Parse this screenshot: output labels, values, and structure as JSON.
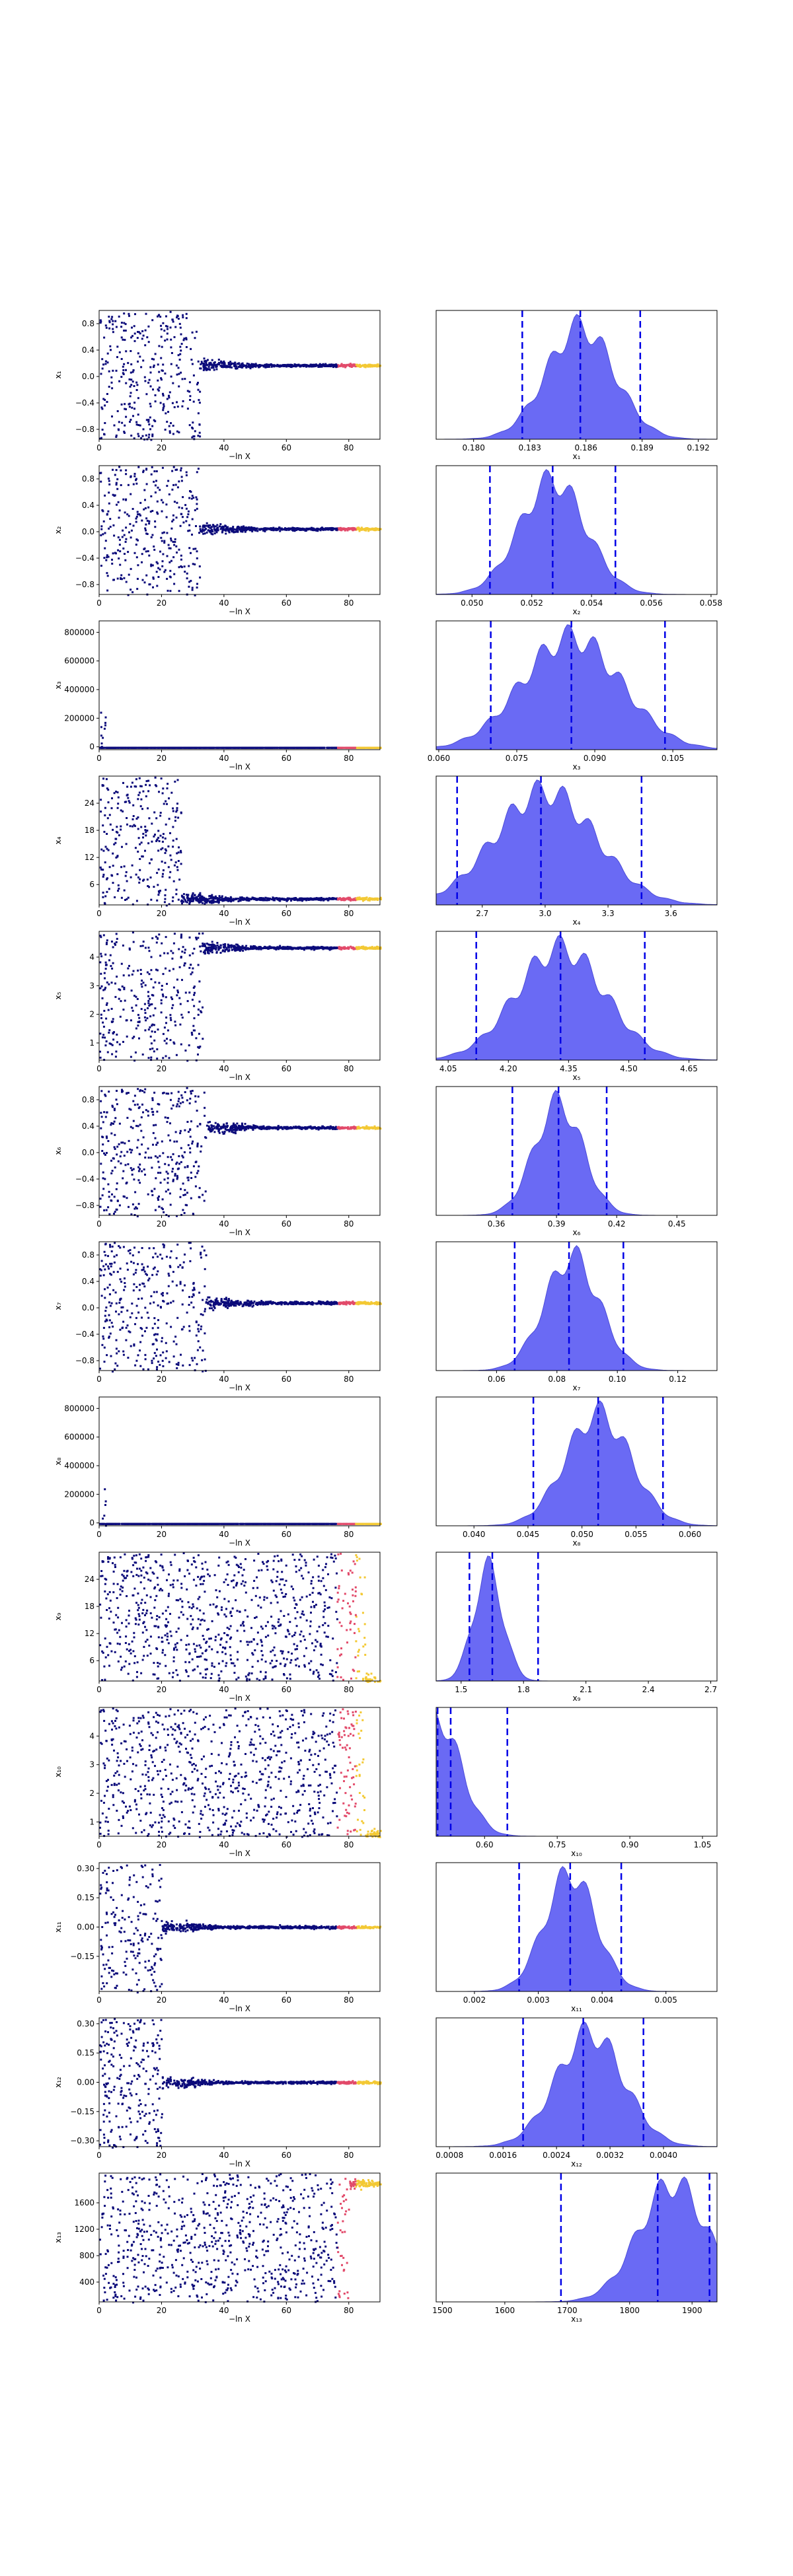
{
  "chart_data": [
    {
      "id": "x1",
      "type": "scatter",
      "xlabel": "−ln X",
      "ylabel": "x₁",
      "xlim": [
        0,
        90
      ],
      "ylim": [
        -0.95,
        1.0
      ],
      "xticks": [
        0,
        20,
        40,
        60,
        80
      ],
      "yticks": [
        -0.8,
        -0.4,
        0.0,
        0.4,
        0.8
      ],
      "yticklabels": [
        "−0.8",
        "−0.4",
        "0.0",
        "0.4",
        "0.8"
      ],
      "converged": 0.18,
      "spread": 0.95,
      "conv_x": 32,
      "hist": {
        "xlabel": "x₁",
        "xlim": [
          0.178,
          0.193
        ],
        "xticks": [
          0.18,
          0.183,
          0.186,
          0.189,
          0.192
        ],
        "xticklabels": [
          "0.180",
          "0.183",
          "0.186",
          "0.189",
          "0.192"
        ],
        "quantiles": [
          0.1826,
          0.1857,
          0.1889
        ],
        "mean": 0.1857,
        "sd": 0.0018
      }
    },
    {
      "id": "x2",
      "type": "scatter",
      "xlabel": "−ln X",
      "ylabel": "x₂",
      "xlim": [
        0,
        90
      ],
      "ylim": [
        -0.95,
        1.0
      ],
      "xticks": [
        0,
        20,
        40,
        60,
        80
      ],
      "yticks": [
        -0.8,
        -0.4,
        0.0,
        0.4,
        0.8
      ],
      "yticklabels": [
        "−0.8",
        "−0.4",
        "0.0",
        "0.4",
        "0.8"
      ],
      "converged": 0.053,
      "spread": 0.95,
      "conv_x": 32,
      "hist": {
        "xlabel": "x₂",
        "xlim": [
          0.0488,
          0.0582
        ],
        "xticks": [
          0.05,
          0.052,
          0.054,
          0.056,
          0.058
        ],
        "xticklabels": [
          "0.050",
          "0.052",
          "0.054",
          "0.056",
          "0.058"
        ],
        "quantiles": [
          0.0506,
          0.0527,
          0.0548
        ],
        "mean": 0.0527,
        "sd": 0.0011
      }
    },
    {
      "id": "x3",
      "type": "scatter",
      "xlabel": "−ln X",
      "ylabel": "x₃",
      "xlim": [
        0,
        90
      ],
      "ylim": [
        -20000,
        880000
      ],
      "xticks": [
        0,
        20,
        40,
        60,
        80
      ],
      "yticks": [
        0,
        200000,
        400000,
        600000,
        800000
      ],
      "yticklabels": [
        "0",
        "200000",
        "400000",
        "600000",
        "800000"
      ],
      "converged": 0.085,
      "spread": 0,
      "conv_x": 2,
      "hist": {
        "xlabel": "x₃",
        "xlim": [
          0.0595,
          0.1135
        ],
        "xticks": [
          0.06,
          0.075,
          0.09,
          0.105
        ],
        "xticklabels": [
          "0.060",
          "0.075",
          "0.090",
          "0.105"
        ],
        "quantiles": [
          0.07,
          0.0855,
          0.1035
        ],
        "mean": 0.0855,
        "sd": 0.0095
      }
    },
    {
      "id": "x4",
      "type": "scatter",
      "xlabel": "−ln X",
      "ylabel": "x₄",
      "xlim": [
        0,
        90
      ],
      "ylim": [
        1.5,
        30
      ],
      "xticks": [
        0,
        20,
        40,
        60,
        80
      ],
      "yticks": [
        6,
        12,
        18,
        24
      ],
      "yticklabels": [
        "6",
        "12",
        "18",
        "24"
      ],
      "converged": 3.0,
      "spread": 14,
      "conv_x": 26,
      "hist": {
        "xlabel": "x₄",
        "xlim": [
          2.48,
          3.82
        ],
        "xticks": [
          2.7,
          3.0,
          3.3,
          3.6
        ],
        "xticklabels": [
          "2.7",
          "3.0",
          "3.3",
          "3.6"
        ],
        "quantiles": [
          2.58,
          2.98,
          3.46
        ],
        "mean": 3.0,
        "sd": 0.24
      }
    },
    {
      "id": "x5",
      "type": "scatter",
      "xlabel": "−ln X",
      "ylabel": "x₅",
      "xlim": [
        0,
        90
      ],
      "ylim": [
        0.4,
        4.9
      ],
      "xticks": [
        0,
        20,
        40,
        60,
        80
      ],
      "yticks": [
        1,
        2,
        3,
        4
      ],
      "yticklabels": [
        "1",
        "2",
        "3",
        "4"
      ],
      "converged": 4.35,
      "spread": 2.0,
      "conv_x": 33,
      "hist": {
        "xlabel": "x₅",
        "xlim": [
          4.02,
          4.72
        ],
        "xticks": [
          4.05,
          4.2,
          4.35,
          4.5,
          4.65
        ],
        "xticklabels": [
          "4.05",
          "4.20",
          "4.35",
          "4.50",
          "4.65"
        ],
        "quantiles": [
          4.12,
          4.33,
          4.54
        ],
        "mean": 4.33,
        "sd": 0.11
      }
    },
    {
      "id": "x6",
      "type": "scatter",
      "xlabel": "−ln X",
      "ylabel": "x₆",
      "xlim": [
        0,
        90
      ],
      "ylim": [
        -0.95,
        1.0
      ],
      "xticks": [
        0,
        20,
        40,
        60,
        80
      ],
      "yticks": [
        -0.8,
        -0.4,
        0.0,
        0.4,
        0.8
      ],
      "yticklabels": [
        "−0.8",
        "−0.4",
        "0.0",
        "0.4",
        "0.8"
      ],
      "converged": 0.39,
      "spread": 0.95,
      "conv_x": 34,
      "hist": {
        "xlabel": "x₆",
        "xlim": [
          0.33,
          0.47
        ],
        "xticks": [
          0.36,
          0.39,
          0.42,
          0.45
        ],
        "xticklabels": [
          "0.36",
          "0.39",
          "0.42",
          "0.45"
        ],
        "quantiles": [
          0.368,
          0.391,
          0.415
        ],
        "mean": 0.391,
        "sd": 0.012
      }
    },
    {
      "id": "x7",
      "type": "scatter",
      "xlabel": "−ln X",
      "ylabel": "x₇",
      "xlim": [
        0,
        90
      ],
      "ylim": [
        -0.95,
        1.0
      ],
      "xticks": [
        0,
        20,
        40,
        60,
        80
      ],
      "yticks": [
        -0.8,
        -0.4,
        0.0,
        0.4,
        0.8
      ],
      "yticklabels": [
        "−0.8",
        "−0.4",
        "0.0",
        "0.4",
        "0.8"
      ],
      "converged": 0.085,
      "spread": 0.95,
      "conv_x": 34,
      "hist": {
        "xlabel": "x₇",
        "xlim": [
          0.04,
          0.133
        ],
        "xticks": [
          0.06,
          0.08,
          0.1,
          0.12
        ],
        "xticklabels": [
          "0.06",
          "0.08",
          "0.10",
          "0.12"
        ],
        "quantiles": [
          0.066,
          0.084,
          0.102
        ],
        "mean": 0.085,
        "sd": 0.009
      }
    },
    {
      "id": "x8",
      "type": "scatter",
      "xlabel": "−ln X",
      "ylabel": "x₈",
      "xlim": [
        0,
        90
      ],
      "ylim": [
        -20000,
        880000
      ],
      "xticks": [
        0,
        20,
        40,
        60,
        80
      ],
      "yticks": [
        0,
        200000,
        400000,
        600000,
        800000
      ],
      "yticklabels": [
        "0",
        "200000",
        "400000",
        "600000",
        "800000"
      ],
      "converged": 0.052,
      "spread": 0,
      "conv_x": 2,
      "hist": {
        "xlabel": "x₈",
        "xlim": [
          0.0365,
          0.0625
        ],
        "xticks": [
          0.04,
          0.045,
          0.05,
          0.055,
          0.06
        ],
        "xticklabels": [
          "0.040",
          "0.045",
          "0.050",
          "0.055",
          "0.060"
        ],
        "quantiles": [
          0.0455,
          0.0515,
          0.0575
        ],
        "mean": 0.0515,
        "sd": 0.003
      }
    },
    {
      "id": "x9",
      "type": "scatter",
      "xlabel": "−ln X",
      "ylabel": "x₉",
      "xlim": [
        0,
        90
      ],
      "ylim": [
        1.5,
        30
      ],
      "xticks": [
        0,
        20,
        40,
        60,
        80
      ],
      "yticks": [
        6,
        12,
        18,
        24
      ],
      "yticklabels": [
        "6",
        "12",
        "18",
        "24"
      ],
      "converged": 1.65,
      "spread": 14,
      "conv_x": 85,
      "hist": {
        "xlabel": "x₉",
        "xlim": [
          1.38,
          2.73
        ],
        "xticks": [
          1.5,
          1.8,
          2.1,
          2.4,
          2.7
        ],
        "xticklabels": [
          "1.5",
          "1.8",
          "2.1",
          "2.4",
          "2.7"
        ],
        "quantiles": [
          1.54,
          1.65,
          1.87
        ],
        "mean": 1.63,
        "sd": 0.07
      }
    },
    {
      "id": "x10",
      "type": "scatter",
      "xlabel": "−ln X",
      "ylabel": "x₁₀",
      "xlim": [
        0,
        90
      ],
      "ylim": [
        0.5,
        5.0
      ],
      "xticks": [
        0,
        20,
        40,
        60,
        80
      ],
      "yticks": [
        1,
        2,
        3,
        4
      ],
      "yticklabels": [
        "1",
        "2",
        "3",
        "4"
      ],
      "converged": 0.55,
      "spread": 2.0,
      "conv_x": 85,
      "hist": {
        "xlabel": "x₁₀",
        "xlim": [
          0.5,
          1.08
        ],
        "xticks": [
          0.6,
          0.75,
          0.9,
          1.05
        ],
        "xticklabels": [
          "0.60",
          "0.75",
          "0.90",
          "1.05"
        ],
        "quantiles": [
          0.503,
          0.53,
          0.647
        ],
        "mean": 0.5,
        "sd": 0.05
      }
    },
    {
      "id": "x11",
      "type": "scatter",
      "xlabel": "−ln X",
      "ylabel": "x₁₁",
      "xlim": [
        0,
        90
      ],
      "ylim": [
        -0.33,
        0.33
      ],
      "xticks": [
        0,
        20,
        40,
        60,
        80
      ],
      "yticks": [
        -0.15,
        0.0,
        0.15,
        0.3
      ],
      "yticklabels": [
        "−0.15",
        "0.00",
        "0.15",
        "0.30"
      ],
      "converged": 0.0035,
      "spread": 0.3,
      "conv_x": 20,
      "hist": {
        "xlabel": "x₁₁",
        "xlim": [
          0.0014,
          0.0058
        ],
        "xticks": [
          0.002,
          0.003,
          0.004,
          0.005
        ],
        "xticklabels": [
          "0.002",
          "0.003",
          "0.004",
          "0.005"
        ],
        "quantiles": [
          0.0027,
          0.0035,
          0.0043
        ],
        "mean": 0.0035,
        "sd": 0.0004
      }
    },
    {
      "id": "x12",
      "type": "scatter",
      "xlabel": "−ln X",
      "ylabel": "x₁₂",
      "xlim": [
        0,
        90
      ],
      "ylim": [
        -0.33,
        0.33
      ],
      "xticks": [
        0,
        20,
        40,
        60,
        80
      ],
      "yticks": [
        -0.3,
        -0.15,
        0.0,
        0.15,
        0.3
      ],
      "yticklabels": [
        "−0.30",
        "−0.15",
        "0.00",
        "0.15",
        "0.30"
      ],
      "converged": 0.0028,
      "spread": 0.3,
      "conv_x": 20,
      "hist": {
        "xlabel": "x₁₂",
        "xlim": [
          0.0006,
          0.0048
        ],
        "xticks": [
          0.0008,
          0.0016,
          0.0024,
          0.0032,
          0.004
        ],
        "xticklabels": [
          "0.0008",
          "0.0016",
          "0.0024",
          "0.0032",
          "0.0040"
        ],
        "quantiles": [
          0.0019,
          0.0028,
          0.0037
        ],
        "mean": 0.0029,
        "sd": 0.0005
      }
    },
    {
      "id": "x13",
      "type": "scatter",
      "xlabel": "−ln X",
      "ylabel": "x₁₃",
      "xlim": [
        0,
        90
      ],
      "ylim": [
        100,
        2050
      ],
      "xticks": [
        0,
        20,
        40,
        60,
        80
      ],
      "yticks": [
        400,
        800,
        1200,
        1600
      ],
      "yticklabels": [
        "400",
        "800",
        "1200",
        "1600"
      ],
      "converged": 1900,
      "spread": 700,
      "conv_x": 80,
      "hist": {
        "xlabel": "x₁₃",
        "xlim": [
          1490,
          1940
        ],
        "xticks": [
          1500,
          1600,
          1700,
          1800,
          1900
        ],
        "xticklabels": [
          "1500",
          "1600",
          "1700",
          "1800",
          "1900"
        ],
        "quantiles": [
          1690,
          1845,
          1928
        ],
        "mean": 1870,
        "sd": 55
      }
    }
  ]
}
